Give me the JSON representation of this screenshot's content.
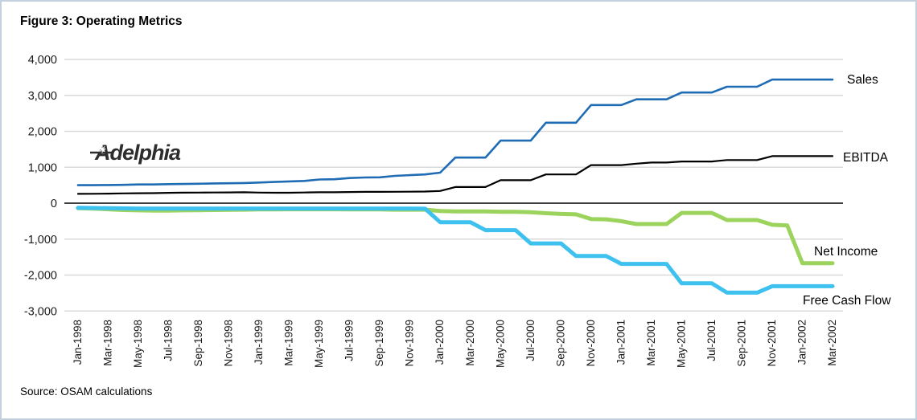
{
  "figure": {
    "title": "Figure 3: Operating Metrics",
    "source": "Source: OSAM calculations",
    "watermark": "Adelphia"
  },
  "colors": {
    "border": "#c3d0dd",
    "gridline": "#d9d9d9",
    "zero_axis": "#000000",
    "sales": "#1f6cb4",
    "ebitda": "#000000",
    "net_income": "#9bd35c",
    "free_cash_flow": "#3fc1ef",
    "watermark": "#2d2d2d"
  },
  "chart_data": {
    "type": "line",
    "title": "Figure 3: Operating Metrics",
    "xlabel": "",
    "ylabel": "",
    "ylim": [
      -3000,
      4000
    ],
    "grid": "horizontal",
    "legend_position": "end-of-line-labels",
    "points_per_tick": 2,
    "y_ticks": [
      {
        "value": 4000,
        "label": "4,000"
      },
      {
        "value": 3000,
        "label": "3,000"
      },
      {
        "value": 2000,
        "label": "2,000"
      },
      {
        "value": 1000,
        "label": "1,000"
      },
      {
        "value": 0,
        "label": "0"
      },
      {
        "value": -1000,
        "label": "-1,000"
      },
      {
        "value": -2000,
        "label": "-2,000"
      },
      {
        "value": -3000,
        "label": "-3,000"
      }
    ],
    "x_tick_labels": [
      "Jan-1998",
      "Mar-1998",
      "May-1998",
      "Jul-1998",
      "Sep-1998",
      "Nov-1998",
      "Jan-1999",
      "Mar-1999",
      "May-1999",
      "Jul-1999",
      "Sep-1999",
      "Nov-1999",
      "Jan-2000",
      "Mar-2000",
      "May-2000",
      "Jul-2000",
      "Sep-2000",
      "Nov-2000",
      "Jan-2001",
      "Mar-2001",
      "May-2001",
      "Jul-2001",
      "Sep-2001",
      "Nov-2001",
      "Jan-2002",
      "Mar-2002"
    ],
    "series": [
      {
        "name": "Sales",
        "color": "#1f6cb4",
        "stroke_width": 2.6,
        "values": [
          500,
          500,
          505,
          510,
          520,
          520,
          530,
          535,
          540,
          550,
          555,
          560,
          575,
          590,
          605,
          620,
          660,
          665,
          700,
          715,
          720,
          760,
          780,
          800,
          850,
          1270,
          1270,
          1270,
          1740,
          1740,
          1740,
          2240,
          2240,
          2240,
          2730,
          2730,
          2730,
          2890,
          2890,
          2890,
          3080,
          3080,
          3080,
          3240,
          3240,
          3240,
          3440,
          3440,
          3440,
          3440,
          3440
        ]
      },
      {
        "name": "EBITDA",
        "color": "#000000",
        "stroke_width": 2.2,
        "values": [
          260,
          262,
          265,
          272,
          278,
          280,
          288,
          292,
          295,
          298,
          300,
          305,
          295,
          290,
          290,
          298,
          305,
          305,
          310,
          315,
          315,
          318,
          320,
          325,
          340,
          450,
          450,
          450,
          640,
          640,
          640,
          800,
          800,
          800,
          1060,
          1060,
          1060,
          1100,
          1130,
          1130,
          1160,
          1160,
          1160,
          1200,
          1200,
          1200,
          1310,
          1310,
          1310,
          1310,
          1310
        ]
      },
      {
        "name": "Net Income",
        "color": "#9bd35c",
        "stroke_width": 5,
        "values": [
          -140,
          -150,
          -170,
          -190,
          -200,
          -205,
          -205,
          -200,
          -195,
          -190,
          -185,
          -180,
          -175,
          -175,
          -170,
          -170,
          -170,
          -170,
          -175,
          -175,
          -175,
          -180,
          -180,
          -180,
          -220,
          -230,
          -230,
          -230,
          -240,
          -240,
          -250,
          -280,
          -300,
          -310,
          -440,
          -450,
          -500,
          -580,
          -580,
          -580,
          -270,
          -270,
          -270,
          -470,
          -470,
          -470,
          -600,
          -620,
          -1670,
          -1670,
          -1670
        ]
      },
      {
        "name": "Free Cash Flow",
        "color": "#3fc1ef",
        "stroke_width": 5,
        "values": [
          -130,
          -135,
          -140,
          -145,
          -150,
          -150,
          -150,
          -150,
          -150,
          -150,
          -150,
          -150,
          -150,
          -150,
          -150,
          -150,
          -150,
          -150,
          -150,
          -150,
          -150,
          -150,
          -150,
          -155,
          -530,
          -530,
          -530,
          -750,
          -750,
          -750,
          -1120,
          -1120,
          -1120,
          -1470,
          -1470,
          -1470,
          -1690,
          -1690,
          -1690,
          -1690,
          -2230,
          -2230,
          -2230,
          -2490,
          -2490,
          -2490,
          -2310,
          -2310,
          -2310,
          -2310,
          -2310
        ]
      }
    ],
    "annotations": [
      {
        "text": "Sales",
        "x": 1053,
        "y": 104
      },
      {
        "text": "EBITDA",
        "x": 1048,
        "y": 201
      },
      {
        "text": "Net Income",
        "x": 1012,
        "y": 318
      },
      {
        "text": "Free Cash Flow",
        "x": 998,
        "y": 379
      }
    ]
  }
}
